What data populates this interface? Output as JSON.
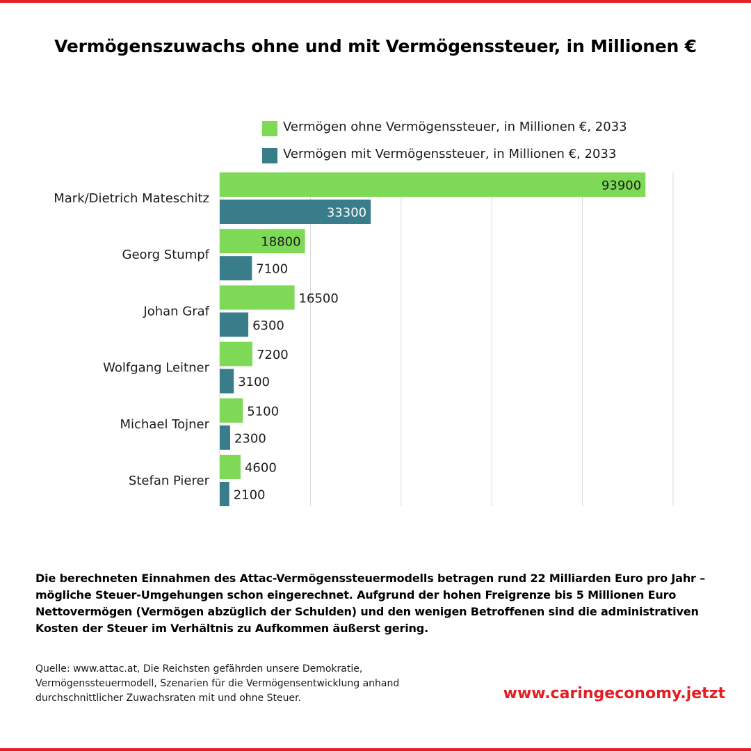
{
  "title": "Vermögenszuwachs ohne und mit Vermögenssteuer, in Millionen €",
  "colors": {
    "frame_red": "#e31e24",
    "green": "#7ed957",
    "teal": "#3a7d8a",
    "grid": "#d9d9d9",
    "website_red": "#e31e24"
  },
  "chart_data": {
    "type": "bar",
    "orientation": "horizontal",
    "title": "Vermögenszuwachs ohne und mit Vermögenssteuer, in Millionen €",
    "categories": [
      "Mark/Dietrich Mateschitz",
      "Georg Stumpf",
      "Johan Graf",
      "Wolfgang Leitner",
      "Michael Tojner",
      "Stefan Pierer"
    ],
    "series": [
      {
        "name": "Vermögen ohne Vermögenssteuer, in Millionen €, 2033",
        "color": "#7ed957",
        "values": [
          93900,
          18800,
          16500,
          7200,
          5100,
          4600
        ]
      },
      {
        "name": "Vermögen mit Vermögenssteuer, in Millionen €, 2033",
        "color": "#3a7d8a",
        "values": [
          33300,
          7100,
          6300,
          3100,
          2300,
          2100
        ]
      }
    ],
    "xlim": [
      0,
      100000
    ],
    "x_grid_step": 20000,
    "grid": true,
    "x_tick_labels_shown": false,
    "legend_position": "top",
    "data_labels": true
  },
  "summary": "Die berechneten Einnahmen des Attac-Vermögenssteuermodells betragen rund 22 Milliarden Euro pro Jahr – mögliche Steuer-Umgehungen schon eingerechnet. Aufgrund der hohen Freigrenze bis 5 Millionen Euro Nettovermögen (Vermögen abzüglich der Schulden) und den wenigen Betroffenen sind die administrativen Kosten der Steuer im Verhältnis zu Aufkommen äußerst gering.",
  "source": "Quelle: www.attac.at, Die Reichsten gefährden unsere Demokratie, Vermögenssteuermodell, Szenarien für die Vermögensentwicklung anhand durchschnittlicher Zuwachsraten mit und ohne Steuer.",
  "website": "www.caringeconomy.jetzt"
}
